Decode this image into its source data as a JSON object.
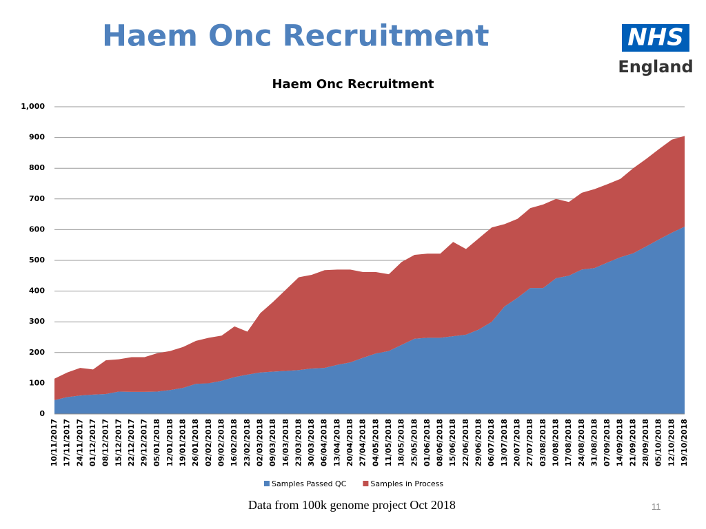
{
  "slide_title": "Haem Onc Recruitment",
  "logo": {
    "mark": "NHS",
    "name": "England"
  },
  "footer": {
    "note": "Data from 100k genome project Oct 2018",
    "page": "11"
  },
  "chart_data": {
    "type": "stacked_area",
    "title": "Haem Onc Recruitment",
    "categories": [
      "10/11/2017",
      "17/11/2017",
      "24/11/2017",
      "01/12/2017",
      "08/12/2017",
      "15/12/2017",
      "22/12/2017",
      "29/12/2017",
      "05/01/2018",
      "12/01/2018",
      "19/01/2018",
      "26/01/2018",
      "02/02/2018",
      "09/02/2018",
      "16/02/2018",
      "23/02/2018",
      "02/03/2018",
      "09/03/2018",
      "16/03/2018",
      "23/03/2018",
      "30/03/2018",
      "06/04/2018",
      "13/04/2018",
      "20/04/2018",
      "27/04/2018",
      "04/05/2018",
      "11/05/2018",
      "18/05/2018",
      "25/05/2018",
      "01/06/2018",
      "08/06/2018",
      "15/06/2018",
      "22/06/2018",
      "29/06/2018",
      "06/07/2018",
      "13/07/2018",
      "20/07/2018",
      "27/07/2018",
      "03/08/2018",
      "10/08/2018",
      "17/08/2018",
      "24/08/2018",
      "31/08/2018",
      "07/09/2018",
      "14/09/2018",
      "21/09/2018",
      "28/09/2018",
      "05/10/2018",
      "12/10/2018",
      "19/10/2018"
    ],
    "series": [
      {
        "name": "Samples Passed QC",
        "color": "#4f81bd",
        "values": [
          45,
          55,
          60,
          63,
          65,
          73,
          72,
          72,
          73,
          78,
          85,
          98,
          100,
          108,
          120,
          128,
          135,
          138,
          140,
          143,
          148,
          150,
          160,
          168,
          183,
          197,
          205,
          225,
          245,
          248,
          248,
          253,
          258,
          275,
          300,
          350,
          378,
          410,
          410,
          442,
          450,
          470,
          475,
          493,
          510,
          523,
          545,
          568,
          590,
          610
        ]
      },
      {
        "name": "Samples in Process",
        "color": "#c0504d",
        "values": [
          70,
          80,
          90,
          82,
          110,
          105,
          113,
          113,
          125,
          127,
          133,
          140,
          148,
          147,
          165,
          140,
          193,
          227,
          265,
          302,
          305,
          318,
          310,
          302,
          279,
          265,
          250,
          270,
          273,
          274,
          274,
          307,
          279,
          297,
          307,
          268,
          257,
          260,
          272,
          258,
          240,
          250,
          257,
          255,
          255,
          277,
          285,
          294,
          303,
          295
        ]
      }
    ],
    "ylim": [
      0,
      1000
    ],
    "yticks": [
      0,
      100,
      200,
      300,
      400,
      500,
      600,
      700,
      800,
      900,
      {
        "value": 1000,
        "label": "1,000"
      }
    ],
    "grid": true,
    "legend": "bottom"
  }
}
